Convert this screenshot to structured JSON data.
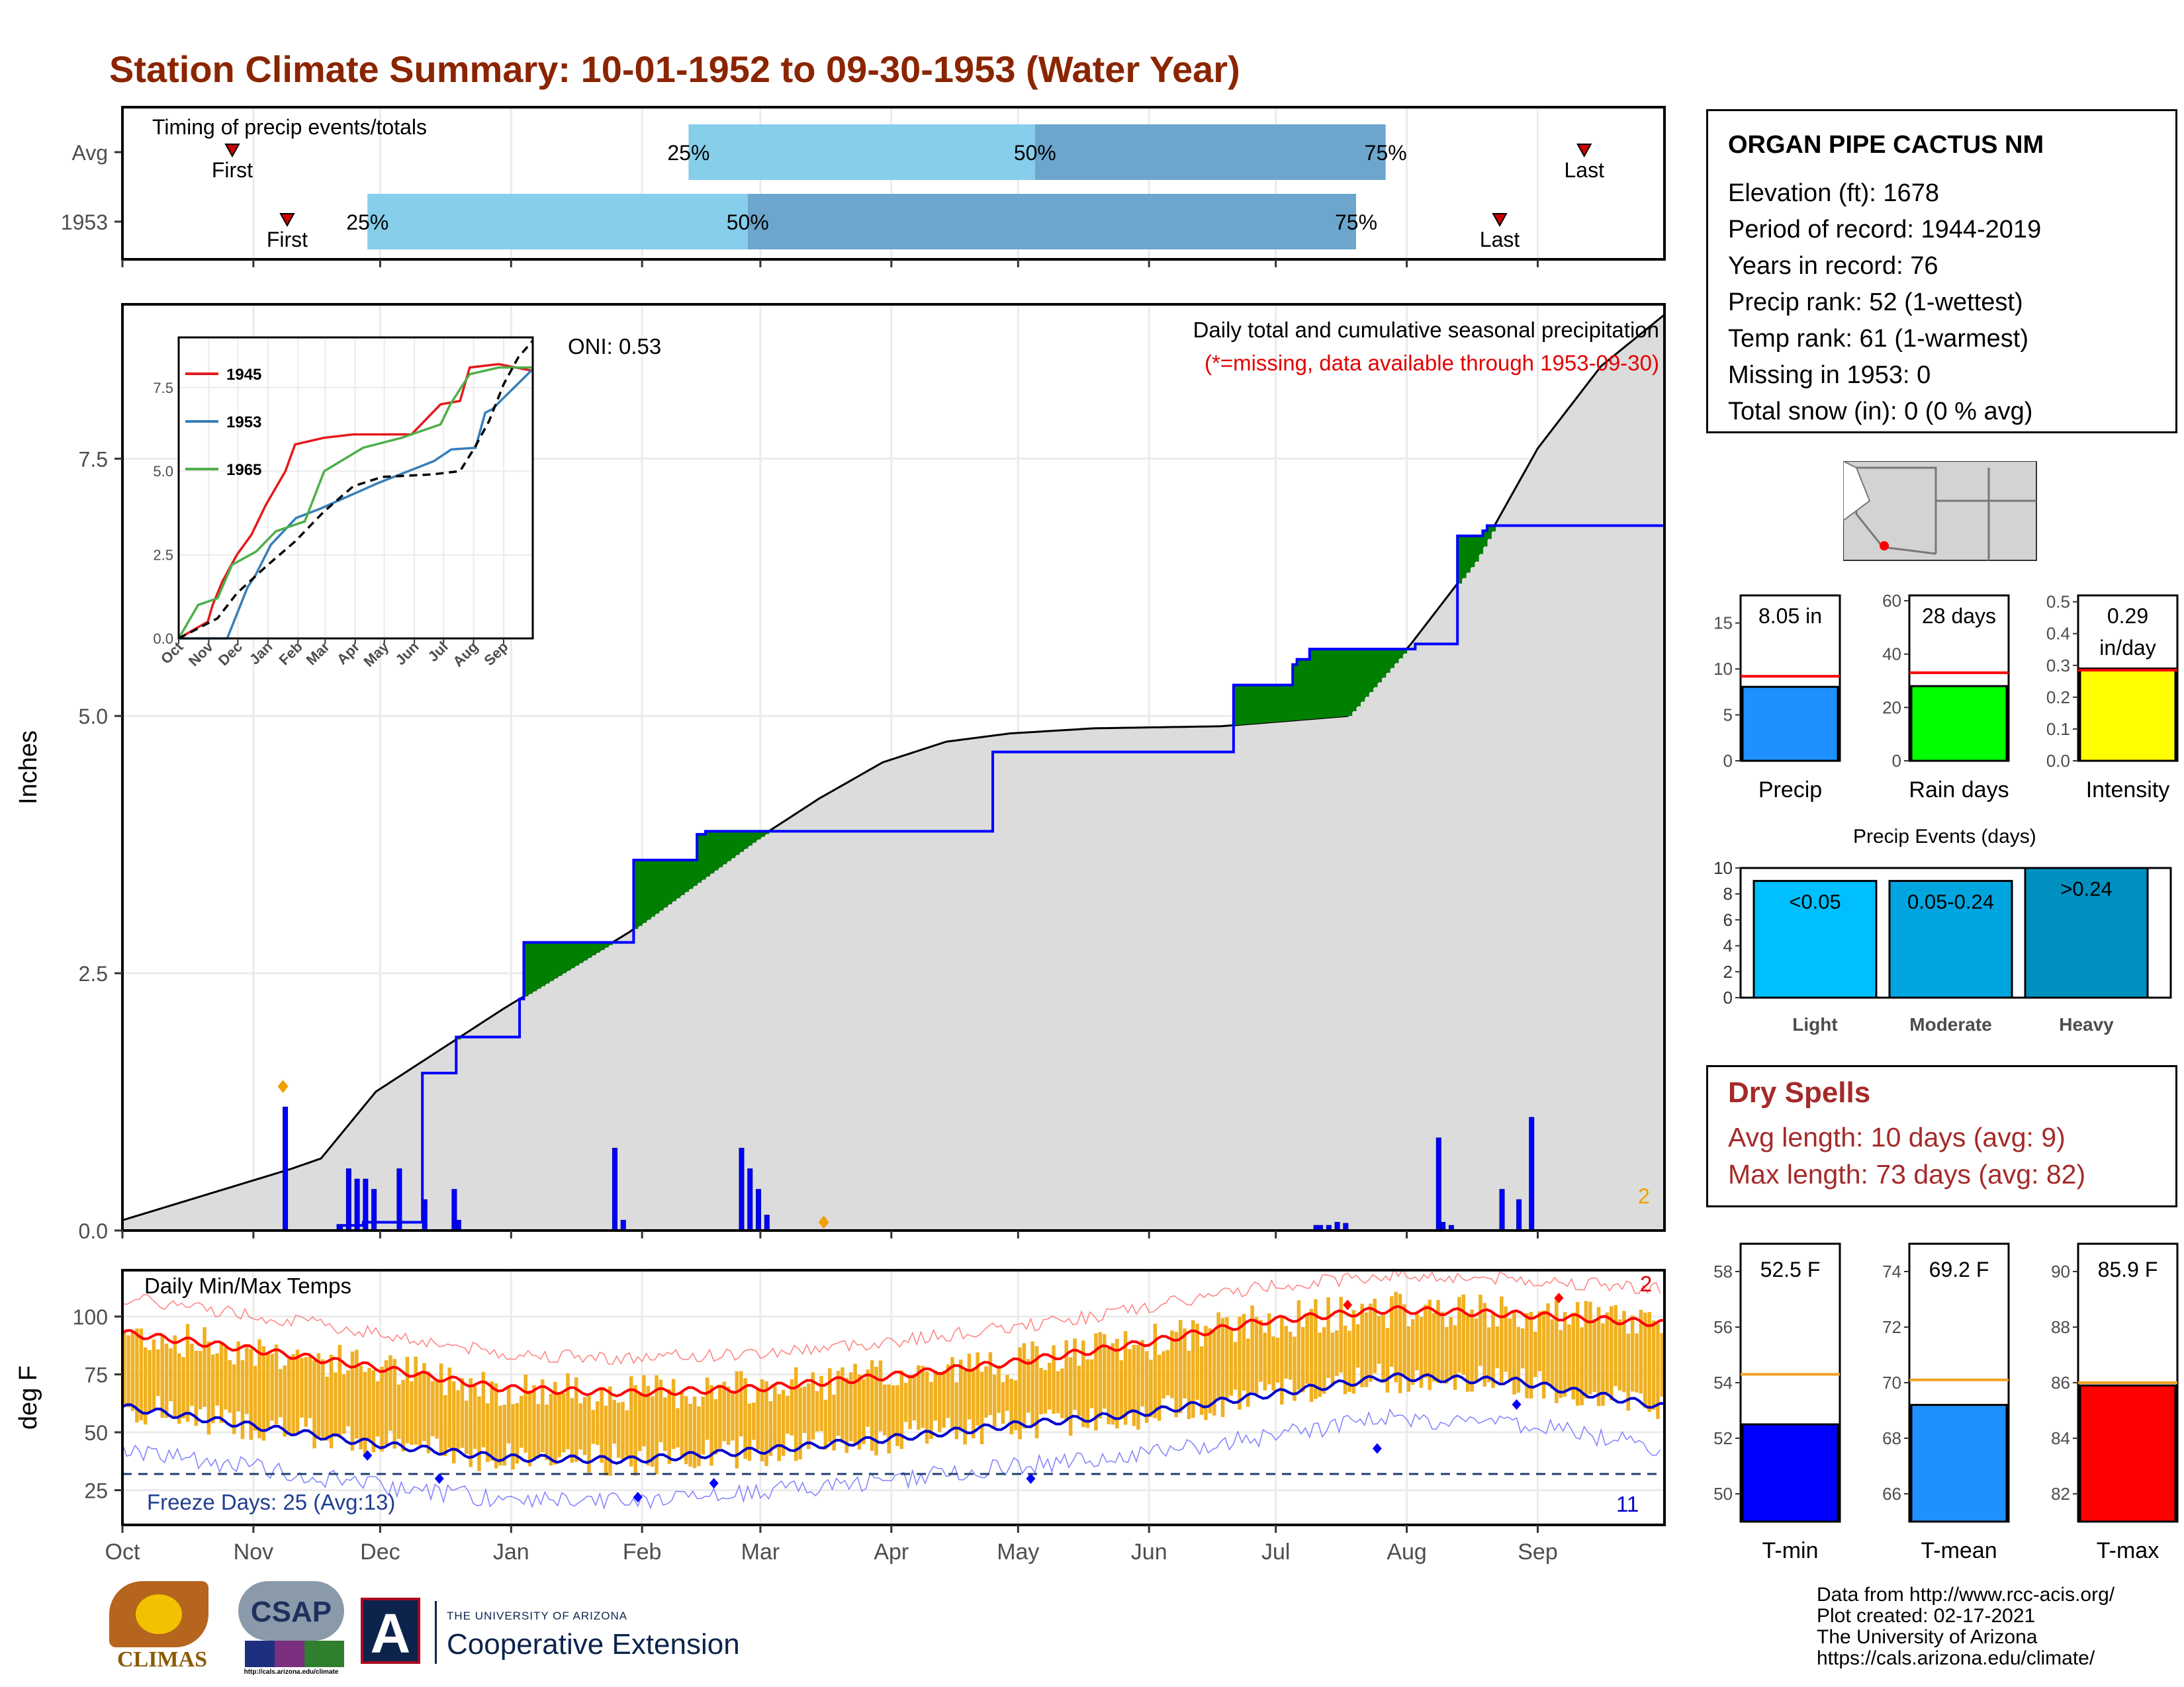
{
  "title": "Station Climate Summary: 10-01-1952 to 09-30-1953 (Water Year)",
  "colors": {
    "title": "#8b2500",
    "deficit_brown": "#8b5a00",
    "surplus_green": "#008000",
    "cumulative_gray": "#dcdcdc",
    "precip_blue": "#0000ff",
    "temp_orange": "#f0b020",
    "avg_high_red": "#ff0000",
    "avg_low_blue": "#0000cc",
    "light_blue": "#87ceeb",
    "mid_blue": "#6ca6cd"
  },
  "months": [
    "Oct",
    "Nov",
    "Dec",
    "Jan",
    "Feb",
    "Mar",
    "Apr",
    "May",
    "Jun",
    "Jul",
    "Aug",
    "Sep"
  ],
  "timing": {
    "label": "Timing of precip events/totals",
    "rows": [
      {
        "label": "Avg",
        "first": "First",
        "last": "Last",
        "p25": "25%",
        "p50": "50%",
        "p75": "75%",
        "first_day": 26,
        "p25_day": 134,
        "p50_day": 216,
        "p75_day": 299,
        "last_day": 346
      },
      {
        "label": "1953",
        "first": "First",
        "last": "Last",
        "p25": "25%",
        "p50": "50%",
        "p75": "75%",
        "first_day": 39,
        "p25_day": 58,
        "p50_day": 148,
        "p75_day": 292,
        "last_day": 326
      }
    ]
  },
  "precip_panel": {
    "ylabel": "Inches",
    "yticks": [
      "0.0",
      "2.5",
      "5.0",
      "7.5"
    ],
    "oni": "ONI: 0.53",
    "caption": "Daily total and cumulative seasonal precipitation",
    "missing_note": "(*=missing, data available through 1953-09-30)",
    "corner_count": "2"
  },
  "chart_data": [
    {
      "type": "area",
      "name": "cumulative-precip",
      "xlabel": "",
      "ylabel": "Inches",
      "ylim": [
        0,
        9.0
      ],
      "x_units": "day of water year (0 = Oct 1)",
      "series": [
        {
          "name": "1953 cumulative",
          "x": [
            0,
            50,
            51,
            56,
            57,
            70,
            71,
            78,
            79,
            90,
            94,
            95,
            120,
            121,
            136,
            138,
            142,
            144,
            145,
            146,
            155,
            205,
            206,
            260,
            263,
            277,
            278,
            281,
            305,
            306,
            315,
            316,
            322,
            323,
            348,
            365
          ],
          "y": [
            0,
            0,
            0.05,
            0.05,
            0.08,
            0.08,
            1.53,
            1.53,
            1.88,
            1.88,
            2.25,
            2.8,
            2.8,
            3.6,
            3.85,
            3.88,
            3.88,
            3.88,
            3.88,
            3.88,
            3.88,
            3.88,
            4.65,
            4.65,
            5.3,
            5.5,
            5.55,
            5.65,
            5.65,
            5.7,
            5.7,
            6.75,
            6.8,
            6.85,
            6.85,
            8.05
          ]
        },
        {
          "name": "average cumulative",
          "x": [
            0,
            20,
            40,
            47,
            60,
            90,
            120,
            150,
            165,
            180,
            195,
            210,
            230,
            260,
            290,
            305,
            320,
            335,
            350,
            365
          ],
          "y": [
            0.1,
            0.35,
            0.6,
            0.7,
            1.35,
            2.15,
            2.9,
            3.8,
            4.2,
            4.55,
            4.75,
            4.83,
            4.88,
            4.9,
            5.0,
            5.7,
            6.5,
            7.6,
            8.4,
            8.9
          ]
        }
      ]
    },
    {
      "type": "bar",
      "name": "daily-precip",
      "x": [
        38,
        51,
        53,
        55,
        57,
        59,
        65,
        71,
        78,
        79,
        116,
        118,
        146,
        148,
        150,
        152,
        282,
        283,
        285,
        287,
        289,
        311,
        312,
        314,
        326,
        330,
        333
      ],
      "values": [
        1.2,
        0.05,
        0.6,
        0.5,
        0.5,
        0.4,
        0.6,
        0.3,
        0.4,
        0.1,
        0.8,
        0.1,
        0.8,
        0.6,
        0.4,
        0.15,
        0.05,
        0.05,
        0.05,
        0.08,
        0.07,
        0.9,
        0.08,
        0.05,
        0.4,
        0.3,
        1.1
      ]
    },
    {
      "type": "line",
      "name": "inset-cumulative-comparison",
      "legend": [
        "1945",
        "1953",
        "1965"
      ],
      "yticks": [
        "0.0",
        "2.5",
        "5.0",
        "7.5"
      ],
      "ylim": [
        0,
        9.0
      ],
      "series": [
        {
          "name": "1945",
          "color": "#e41a1c",
          "x": [
            0,
            30,
            35,
            45,
            60,
            75,
            90,
            110,
            120,
            150,
            180,
            240,
            270,
            290,
            300,
            330,
            365
          ],
          "y": [
            0,
            0.5,
            1.0,
            1.7,
            2.5,
            3.1,
            4.0,
            5.0,
            5.8,
            6.0,
            6.1,
            6.1,
            7.0,
            7.1,
            8.1,
            8.2,
            8.0
          ]
        },
        {
          "name": "1953",
          "color": "#377eb8",
          "x": [
            0,
            50,
            71,
            79,
            95,
            121,
            146,
            206,
            263,
            281,
            306,
            316,
            323,
            365
          ],
          "y": [
            0,
            0,
            1.53,
            1.88,
            2.8,
            3.6,
            3.88,
            4.65,
            5.3,
            5.65,
            5.7,
            6.75,
            6.85,
            8.05
          ]
        },
        {
          "name": "1965",
          "color": "#4daf4a",
          "x": [
            0,
            20,
            40,
            55,
            80,
            100,
            130,
            150,
            190,
            230,
            270,
            280,
            300,
            330,
            365
          ],
          "y": [
            0,
            1.0,
            1.2,
            2.2,
            2.6,
            3.2,
            3.5,
            5.0,
            5.7,
            6.0,
            6.4,
            7.0,
            7.9,
            8.1,
            8.1
          ]
        },
        {
          "name": "average",
          "color": "#000000",
          "x": [
            0,
            40,
            60,
            90,
            120,
            150,
            180,
            210,
            260,
            290,
            305,
            320,
            335,
            350,
            365
          ],
          "y": [
            0,
            0.6,
            1.35,
            2.15,
            2.9,
            3.8,
            4.55,
            4.83,
            4.9,
            5.0,
            5.7,
            6.5,
            7.6,
            8.4,
            8.9
          ]
        }
      ]
    },
    {
      "type": "line",
      "name": "daily-temps",
      "ylabel": "deg F",
      "yticks": [
        "25",
        "50",
        "75",
        "100"
      ],
      "ylim": [
        10,
        120
      ],
      "series": [
        {
          "name": "avg max",
          "x": [
            0,
            30,
            60,
            90,
            120,
            150,
            180,
            210,
            240,
            270,
            300,
            330,
            365
          ],
          "y": [
            93,
            86,
            78,
            69,
            67,
            69,
            74,
            80,
            88,
            98,
            103,
            101,
            97
          ]
        },
        {
          "name": "avg min",
          "x": [
            0,
            30,
            60,
            90,
            120,
            150,
            180,
            210,
            240,
            270,
            300,
            330,
            365
          ],
          "y": [
            61,
            53,
            45,
            39,
            38,
            42,
            47,
            53,
            58,
            66,
            74,
            72,
            61
          ]
        },
        {
          "name": "freeze line",
          "x": [
            0,
            365
          ],
          "y": [
            32,
            32
          ]
        }
      ],
      "annotations": {
        "panel_label": "Daily Min/Max Temps",
        "freeze_days": "Freeze Days: 25 (Avg:13)",
        "count_top": "2",
        "count_bottom": "11"
      }
    },
    {
      "type": "bar",
      "name": "precip-summary",
      "bars": [
        {
          "label": "Precip",
          "value": 8.05,
          "avg": 9.2,
          "text": "8.05 in",
          "color": "#1e90ff",
          "ymax": 18,
          "yticks": [
            "0",
            "5",
            "10",
            "15"
          ]
        },
        {
          "label": "Rain days",
          "value": 28,
          "avg": 33,
          "text": "28 days",
          "color": "#00ff00",
          "ymax": 62,
          "yticks": [
            "0",
            "20",
            "40",
            "60"
          ]
        },
        {
          "label": "Intensity",
          "value": 0.29,
          "avg": 0.285,
          "text": "0.29",
          "text2": "in/day",
          "color": "#ffff00",
          "ymax": 0.52,
          "yticks": [
            "0.0",
            "0.1",
            "0.2",
            "0.3",
            "0.4",
            "0.5"
          ]
        }
      ]
    },
    {
      "type": "bar",
      "name": "precip-events",
      "title": "Precip Events (days)",
      "categories": [
        "Light",
        "Moderate",
        "Heavy"
      ],
      "values": [
        9,
        9,
        10
      ],
      "bar_labels": [
        "<0.05",
        "0.05-0.24",
        ">0.24"
      ],
      "yticks": [
        "0",
        "2",
        "4",
        "6",
        "8",
        "10"
      ],
      "ylim": [
        0,
        10
      ]
    },
    {
      "type": "bar",
      "name": "temp-summary",
      "bars": [
        {
          "label": "T-min",
          "value": 52.5,
          "avg": 54.3,
          "text": "52.5 F",
          "color": "#0000ff",
          "ymin": 49,
          "ymax": 59,
          "yticks": [
            "50",
            "52",
            "54",
            "56",
            "58"
          ]
        },
        {
          "label": "T-mean",
          "value": 69.2,
          "avg": 70.1,
          "text": "69.2 F",
          "color": "#1e90ff",
          "ymin": 65,
          "ymax": 75,
          "yticks": [
            "66",
            "68",
            "70",
            "72",
            "74"
          ]
        },
        {
          "label": "T-max",
          "value": 85.9,
          "avg": 86.0,
          "text": "85.9 F",
          "color": "#ff0000",
          "ymin": 81,
          "ymax": 91,
          "yticks": [
            "82",
            "84",
            "86",
            "88",
            "90"
          ]
        }
      ]
    }
  ],
  "station": {
    "name": "ORGAN PIPE CACTUS NM",
    "lines": [
      "Elevation (ft): 1678",
      "Period of record: 1944-2019",
      "Years in record: 76",
      "Precip rank: 52 (1-wettest)",
      "Temp rank: 61 (1-warmest)",
      "Missing in 1953: 0",
      "Total snow (in): 0 (0 % avg)"
    ]
  },
  "dry_spells": {
    "title": "Dry Spells",
    "avg_length": "Avg length: 10 days (avg: 9)",
    "max_length": "Max length: 73 days (avg: 82)"
  },
  "footer": {
    "lines": [
      "Data from http://www.rcc-acis.org/",
      "Plot created: 02-17-2021",
      "The University of Arizona",
      "https://cals.arizona.edu/climate/"
    ],
    "logo_climas": "CLIMAS",
    "logo_csap": "CSAP",
    "logo_csap_url": "http://cals.arizona.edu/climate",
    "ua_small": "THE UNIVERSITY OF ARIZONA",
    "ua_big": "Cooperative Extension",
    "ua_letter": "A"
  }
}
